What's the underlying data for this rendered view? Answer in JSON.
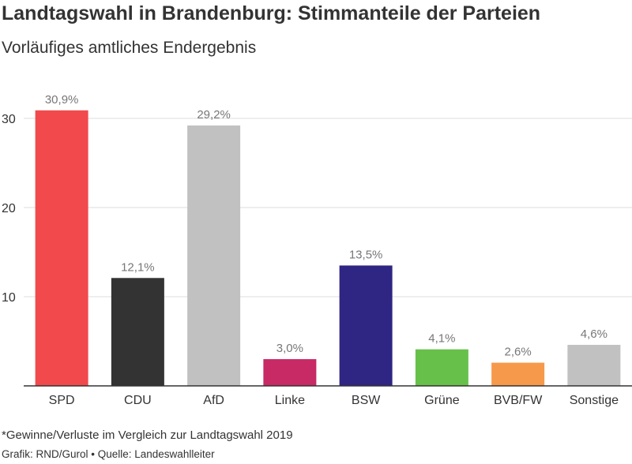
{
  "header": {
    "title": "Landtagswahl in Brandenburg: Stimmanteile der Parteien",
    "subtitle": "Vorläufiges amtliches Endergebnis"
  },
  "footer": {
    "footnote": "*Gewinne/Verluste im Vergleich zur Landtagswahl 2019",
    "source": "Grafik: RND/Gurol • Quelle: Landeswahlleiter"
  },
  "chart_data": {
    "type": "bar",
    "categories": [
      "SPD",
      "CDU",
      "AfD",
      "Linke",
      "BSW",
      "Grüne",
      "BVB/FW",
      "Sonstige"
    ],
    "values": [
      30.9,
      12.1,
      29.2,
      3.0,
      13.5,
      4.1,
      2.6,
      4.6
    ],
    "value_labels": [
      "30,9%",
      "12,1%",
      "29,2%",
      "3,0%",
      "13,5%",
      "4,1%",
      "2,6%",
      "4,6%"
    ],
    "colors": [
      "#f24a4c",
      "#333333",
      "#c1c1c1",
      "#c72a65",
      "#2f2583",
      "#67c04a",
      "#f7994a",
      "#c1c1c1"
    ],
    "y_ticks": [
      10,
      20,
      30
    ],
    "ylim": [
      0,
      33.4
    ],
    "grid": true,
    "label_color": "#777777",
    "grid_color": "#dddddd",
    "axis_color": "#333333"
  }
}
